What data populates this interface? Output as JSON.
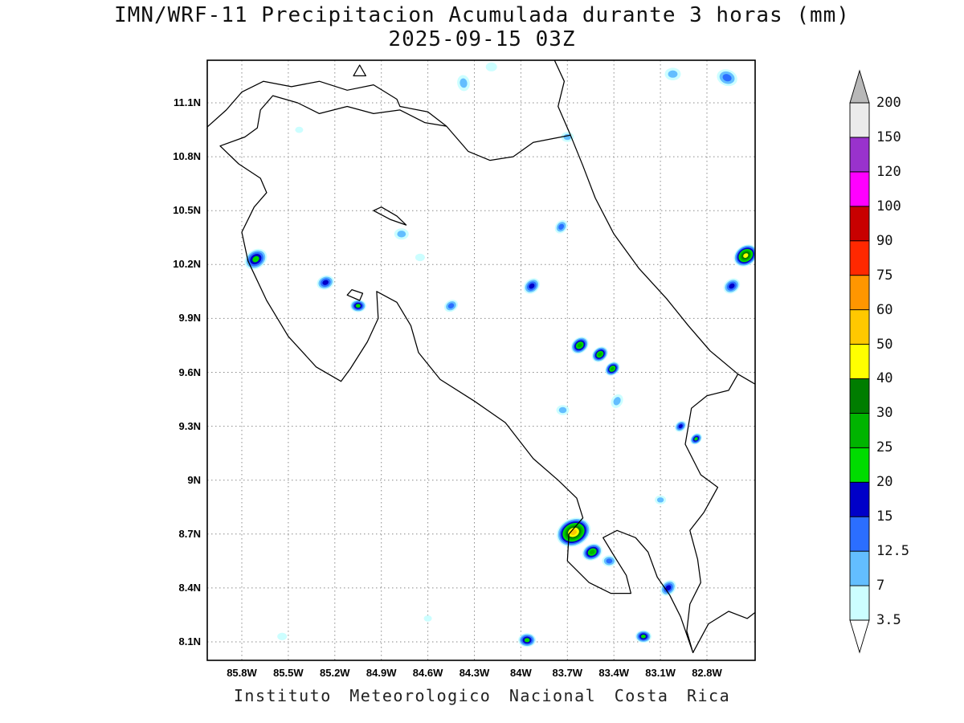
{
  "title_line1": "IMN/WRF-11 Precipitacion Acumulada durante 3 horas (mm)",
  "title_line2": "2025-09-15 03Z",
  "footer": "Instituto Meteorologico Nacional Costa Rica",
  "axes": {
    "x_tick_labels": [
      "85.8W",
      "85.5W",
      "85.2W",
      "84.9W",
      "84.6W",
      "84.3W",
      "84W",
      "83.7W",
      "83.4W",
      "83.1W",
      "82.8W"
    ],
    "y_tick_labels": [
      "11.1N",
      "10.8N",
      "10.5N",
      "10.2N",
      "9.9N",
      "9.6N",
      "9.3N",
      "9N",
      "8.7N",
      "8.4N",
      "8.1N"
    ]
  },
  "colorbar": {
    "tick_labels": [
      "3.5",
      "7",
      "12.5",
      "15",
      "20",
      "25",
      "30",
      "40",
      "50",
      "60",
      "75",
      "90",
      "100",
      "120",
      "150",
      "200"
    ],
    "segment_colors": [
      "#CCFEFF",
      "#63BEFF",
      "#2B6EFF",
      "#0000C8",
      "#00DC00",
      "#00B400",
      "#007D00",
      "#FFFF00",
      "#FFC800",
      "#FF9600",
      "#FF2800",
      "#C80000",
      "#FF00FF",
      "#9932CC",
      "#EBEBEB"
    ],
    "above_max_color": "#B8B8B8",
    "below_min_color": "#FFFFFF",
    "outline_color": "#000000"
  },
  "chart_data": {
    "type": "map-contour",
    "model": "IMN/WRF-11",
    "variable": "Precipitacion Acumulada durante 3 horas (mm)",
    "valid_time": "2025-09-15 03Z",
    "region": "Costa Rica",
    "lon_ticks_deg_w": [
      85.8,
      85.5,
      85.2,
      84.9,
      84.6,
      84.3,
      84.0,
      83.7,
      83.4,
      83.1,
      82.8
    ],
    "lat_ticks_deg_n": [
      11.1,
      10.8,
      10.5,
      10.2,
      9.9,
      9.6,
      9.3,
      9.0,
      8.7,
      8.4,
      8.1
    ],
    "levels_mm": [
      3.5,
      7,
      12.5,
      15,
      20,
      25,
      30,
      40,
      50,
      60,
      75,
      90,
      100,
      120,
      150,
      200
    ],
    "precip_cells": [
      {
        "lon": -85.71,
        "lat": 10.23,
        "peak": 20,
        "r": 15,
        "rot": -35
      },
      {
        "lon": -85.26,
        "lat": 10.1,
        "peak": 15,
        "r": 11,
        "rot": -20
      },
      {
        "lon": -85.05,
        "lat": 9.97,
        "peak": 20,
        "r": 10,
        "rot": 0
      },
      {
        "lon": -84.77,
        "lat": 10.37,
        "peak": 7,
        "r": 9,
        "rot": 0
      },
      {
        "lon": -84.65,
        "lat": 10.24,
        "peak": 3.5,
        "r": 6,
        "rot": 0
      },
      {
        "lon": -84.45,
        "lat": 9.97,
        "peak": 12.5,
        "r": 9,
        "rot": -30
      },
      {
        "lon": -84.37,
        "lat": 11.21,
        "peak": 7,
        "r": 10,
        "rot": 80
      },
      {
        "lon": -84.19,
        "lat": 11.3,
        "peak": 3.5,
        "r": 7,
        "rot": 0
      },
      {
        "lon": -83.93,
        "lat": 10.08,
        "peak": 15,
        "r": 11,
        "rot": -40
      },
      {
        "lon": -83.74,
        "lat": 10.41,
        "peak": 12.5,
        "r": 9,
        "rot": -50
      },
      {
        "lon": -83.7,
        "lat": 10.91,
        "peak": 7,
        "r": 8,
        "rot": 0
      },
      {
        "lon": -83.62,
        "lat": 9.75,
        "peak": 25,
        "r": 12,
        "rot": -40
      },
      {
        "lon": -83.49,
        "lat": 9.7,
        "peak": 25,
        "r": 11,
        "rot": -40
      },
      {
        "lon": -83.41,
        "lat": 9.62,
        "peak": 25,
        "r": 10,
        "rot": -40
      },
      {
        "lon": -83.73,
        "lat": 9.39,
        "peak": 7,
        "r": 8,
        "rot": 0
      },
      {
        "lon": -83.38,
        "lat": 9.44,
        "peak": 7,
        "r": 9,
        "rot": -60
      },
      {
        "lon": -83.02,
        "lat": 11.26,
        "peak": 7,
        "r": 10,
        "rot": 0
      },
      {
        "lon": -82.67,
        "lat": 11.24,
        "peak": 12.5,
        "r": 13,
        "rot": 20
      },
      {
        "lon": -82.55,
        "lat": 10.25,
        "peak": 40,
        "r": 16,
        "rot": -35
      },
      {
        "lon": -82.64,
        "lat": 10.08,
        "peak": 15,
        "r": 11,
        "rot": -35
      },
      {
        "lon": -82.97,
        "lat": 9.3,
        "peak": 15,
        "r": 8,
        "rot": -40
      },
      {
        "lon": -82.87,
        "lat": 9.23,
        "peak": 20,
        "r": 8,
        "rot": -40
      },
      {
        "lon": -83.1,
        "lat": 8.89,
        "peak": 7,
        "r": 7,
        "rot": 0
      },
      {
        "lon": -83.66,
        "lat": 8.71,
        "peak": 50,
        "r": 22,
        "rot": -25
      },
      {
        "lon": -83.54,
        "lat": 8.6,
        "peak": 25,
        "r": 13,
        "rot": -25
      },
      {
        "lon": -83.43,
        "lat": 8.55,
        "peak": 12.5,
        "r": 9,
        "rot": 0
      },
      {
        "lon": -83.05,
        "lat": 8.4,
        "peak": 15,
        "r": 11,
        "rot": -45
      },
      {
        "lon": -83.21,
        "lat": 8.13,
        "peak": 20,
        "r": 10,
        "rot": 0
      },
      {
        "lon": -83.96,
        "lat": 8.11,
        "peak": 20,
        "r": 11,
        "rot": 0
      },
      {
        "lon": -85.54,
        "lat": 8.13,
        "peak": 3.5,
        "r": 6,
        "rot": 0
      },
      {
        "lon": -84.6,
        "lat": 8.23,
        "peak": 3.5,
        "r": 5,
        "rot": 0
      },
      {
        "lon": -85.43,
        "lat": 10.95,
        "peak": 3.5,
        "r": 5,
        "rot": 0
      }
    ]
  }
}
